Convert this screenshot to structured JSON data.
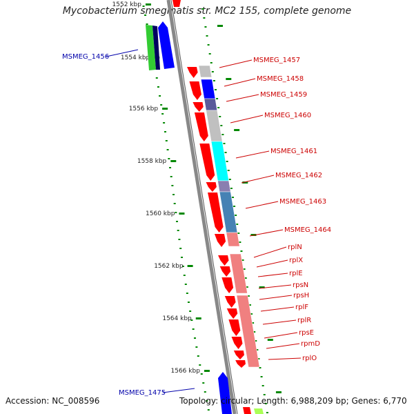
{
  "title": "Mycobacterium smegmatis str. MC2 155, complete genome",
  "accession": "Accession: NC_008596",
  "summary": "Topology: circular; Length: 6,988,209 bp; Genes: 6,770",
  "ruler_ticks": [
    "1552 kbp",
    "1554 kbp",
    "1556 kbp",
    "1558 kbp",
    "1560 kbp",
    "1562 kbp",
    "1564 kbp",
    "1566 kbp"
  ],
  "labels_left": [
    "MSMEG_1456",
    "MSMEG_1475"
  ],
  "labels_right": [
    "MSMEG_1457",
    "MSMEG_1458",
    "MSMEG_1459",
    "MSMEG_1460",
    "MSMEG_1461",
    "MSMEG_1462",
    "MSMEG_1463",
    "MSMEG_1464",
    "rplN",
    "rplX",
    "rplE",
    "rpsN",
    "rpsH",
    "rplF",
    "rplR",
    "rpsE",
    "rpmD",
    "rplO"
  ],
  "colors": {
    "cds": "#ff0000",
    "blue": "#0000ff",
    "navy": "#000060",
    "green": "#33cc33",
    "cyan": "#00ffff",
    "steel": "#4682b4",
    "salmon": "#f08080",
    "grey": "#c0c0c0",
    "left_label": "#0000aa",
    "right_label": "#cc0000",
    "ruler": "#008800"
  }
}
